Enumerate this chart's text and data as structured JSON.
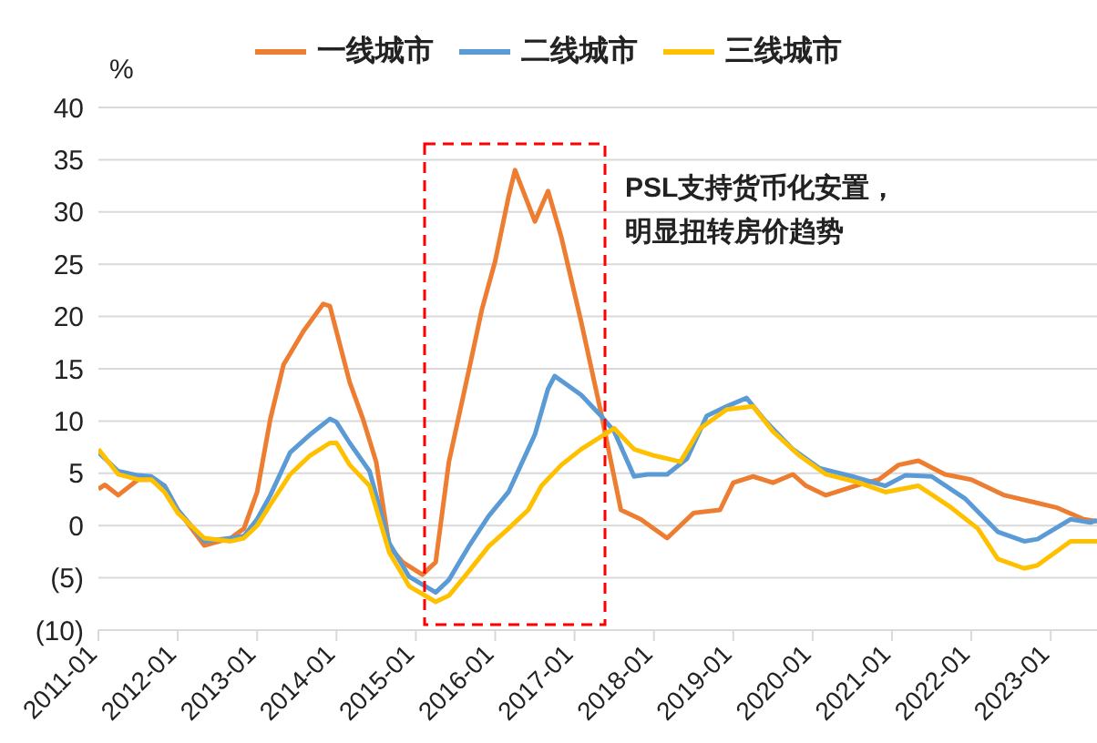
{
  "chart_data": {
    "type": "line",
    "ylabel": "%",
    "annotations": [
      "PSL支持货币化安置，明显扭转房价趋势"
    ],
    "xlim": [
      "2011-01",
      "2023-08"
    ],
    "xticks": [
      "2011-01",
      "2012-01",
      "2013-01",
      "2014-01",
      "2015-01",
      "2016-01",
      "2017-01",
      "2018-01",
      "2019-01",
      "2020-01",
      "2021-01",
      "2022-01",
      "2023-01"
    ],
    "ylim": [
      -10,
      40
    ],
    "yticks": [
      {
        "value": -10,
        "label": "(10)"
      },
      {
        "value": -5,
        "label": "(5)"
      },
      0,
      5,
      10,
      15,
      20,
      25,
      30,
      35,
      40
    ],
    "grid": "y",
    "legend": "top",
    "line_style": "solid",
    "marker": "none",
    "series": [
      {
        "name": "一线城市",
        "color": "#ed7d31",
        "x": [
          "2011-01",
          "2011-02",
          "2011-04",
          "2011-07",
          "2011-09",
          "2011-11",
          "2012-01",
          "2012-05",
          "2012-09",
          "2012-11",
          "2013-01",
          "2013-03",
          "2013-05",
          "2013-08",
          "2013-11",
          "2013-12",
          "2014-03",
          "2014-05",
          "2014-07",
          "2014-09",
          "2014-11",
          "2015-02",
          "2015-04",
          "2015-06",
          "2015-09",
          "2015-11",
          "2016-01",
          "2016-03",
          "2016-04",
          "2016-07",
          "2016-09",
          "2016-11",
          "2017-02",
          "2017-05",
          "2017-08",
          "2017-11",
          "2018-03",
          "2018-07",
          "2018-11",
          "2019-01",
          "2019-04",
          "2019-07",
          "2019-10",
          "2019-12",
          "2020-03",
          "2020-08",
          "2020-11",
          "2021-02",
          "2021-05",
          "2021-09",
          "2022-01",
          "2022-06",
          "2022-10",
          "2023-02",
          "2023-06",
          "2023-08"
        ],
        "values": [
          3.5,
          3.9,
          2.9,
          4.4,
          4.4,
          3.8,
          1.5,
          -1.9,
          -1.2,
          -0.3,
          3.2,
          10.2,
          15.4,
          18.6,
          21.2,
          21,
          13.7,
          10.2,
          6.1,
          -2,
          -3.5,
          -4.7,
          -3.5,
          6.1,
          14.8,
          20.7,
          25.3,
          31.4,
          34,
          29.1,
          32,
          27.6,
          19.5,
          10.8,
          1.5,
          0.6,
          -1.2,
          1.2,
          1.5,
          4.1,
          4.7,
          4.1,
          4.9,
          3.8,
          2.9,
          3.9,
          4.4,
          5.8,
          6.2,
          4.9,
          4.4,
          2.9,
          2.3,
          1.7,
          0.6,
          0.4
        ]
      },
      {
        "name": "二线城市",
        "color": "#5b9bd5",
        "x": [
          "2011-01",
          "2011-04",
          "2011-07",
          "2011-09",
          "2011-11",
          "2012-01",
          "2012-05",
          "2012-09",
          "2012-11",
          "2013-01",
          "2013-03",
          "2013-06",
          "2013-09",
          "2013-12",
          "2014-01",
          "2014-03",
          "2014-06",
          "2014-09",
          "2014-12",
          "2015-04",
          "2015-06",
          "2015-09",
          "2015-12",
          "2016-03",
          "2016-07",
          "2016-09",
          "2016-10",
          "2017-02",
          "2017-05",
          "2017-07",
          "2017-10",
          "2017-12",
          "2018-03",
          "2018-06",
          "2018-09",
          "2018-12",
          "2019-03",
          "2019-06",
          "2019-10",
          "2020-02",
          "2020-07",
          "2020-12",
          "2021-03",
          "2021-07",
          "2021-12",
          "2022-05",
          "2022-09",
          "2022-11",
          "2023-04",
          "2023-07",
          "2023-08"
        ],
        "values": [
          7,
          5.2,
          4.8,
          4.7,
          3.8,
          1.5,
          -1.5,
          -1.2,
          -1,
          0.6,
          2.9,
          7,
          8.7,
          10.2,
          9.9,
          7.9,
          5.2,
          -1.7,
          -4.9,
          -6.4,
          -5.2,
          -2,
          0.9,
          3.2,
          8.7,
          13.1,
          14.3,
          12.5,
          10.5,
          9,
          4.7,
          4.9,
          4.9,
          6.4,
          10.5,
          11.4,
          12.2,
          9.9,
          7.3,
          5.5,
          4.7,
          3.8,
          4.8,
          4.7,
          2.6,
          -0.6,
          -1.5,
          -1.3,
          0.6,
          0.3,
          0.5
        ]
      },
      {
        "name": "三线城市",
        "color": "#ffc000",
        "x": [
          "2011-01",
          "2011-04",
          "2011-07",
          "2011-09",
          "2011-11",
          "2012-01",
          "2012-05",
          "2012-09",
          "2012-11",
          "2013-01",
          "2013-03",
          "2013-06",
          "2013-09",
          "2013-12",
          "2014-01",
          "2014-03",
          "2014-06",
          "2014-09",
          "2014-12",
          "2015-04",
          "2015-06",
          "2015-09",
          "2015-12",
          "2016-03",
          "2016-06",
          "2016-08",
          "2016-11",
          "2017-02",
          "2017-07",
          "2017-10",
          "2018-01",
          "2018-05",
          "2018-08",
          "2018-12",
          "2019-04",
          "2019-07",
          "2019-11",
          "2020-03",
          "2020-08",
          "2020-12",
          "2021-05",
          "2021-10",
          "2022-02",
          "2022-05",
          "2022-09",
          "2022-11",
          "2023-04",
          "2023-08"
        ],
        "values": [
          7.3,
          4.9,
          4.4,
          4.4,
          3.2,
          1.2,
          -1.2,
          -1.5,
          -1.2,
          0,
          2,
          4.9,
          6.7,
          7.9,
          7.9,
          5.8,
          3.8,
          -2.6,
          -5.8,
          -7.3,
          -6.7,
          -4.4,
          -2,
          -0.3,
          1.5,
          3.8,
          5.8,
          7.3,
          9.3,
          7.3,
          6.7,
          6.1,
          9.3,
          11.1,
          11.4,
          9,
          6.7,
          4.9,
          4.1,
          3.2,
          3.8,
          1.7,
          -0.3,
          -3.2,
          -4.1,
          -3.8,
          -1.5,
          -1.5
        ]
      }
    ]
  }
}
